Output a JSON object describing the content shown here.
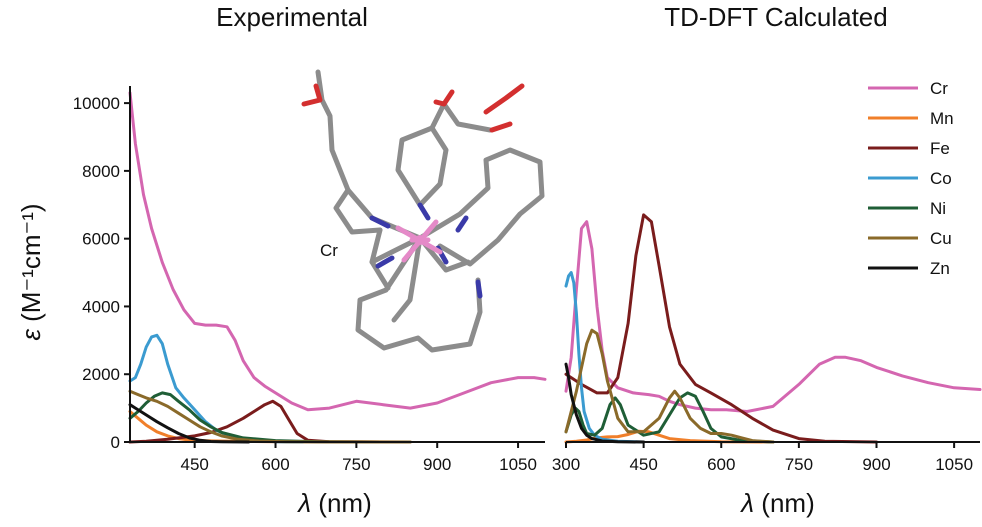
{
  "colors": {
    "Cr": "#d466b0",
    "Mn": "#f07f2a",
    "Fe": "#7a1c1c",
    "Co": "#3b9bd0",
    "Ni": "#1f5e36",
    "Cu": "#8a6a2a",
    "Zn": "#111111"
  },
  "y_axis": {
    "label_symbol": "ε",
    "label_unit": "(M⁻¹cm⁻¹)",
    "ticks": [
      "0",
      "2000",
      "4000",
      "6000",
      "8000",
      "10000"
    ]
  },
  "x_axis_label_symbol": "λ",
  "x_axis_label_unit": "(nm)",
  "legend": [
    "Cr",
    "Mn",
    "Fe",
    "Co",
    "Ni",
    "Cu",
    "Zn"
  ],
  "inset_label": "Cr",
  "chart_data": [
    {
      "type": "line",
      "title": "Experimental",
      "xlabel": "λ (nm)",
      "ylabel": "ε (M⁻¹cm⁻¹)",
      "xlim": [
        330,
        1100
      ],
      "ylim": [
        0,
        10800
      ],
      "xticks": [
        450,
        600,
        750,
        900,
        1050
      ],
      "yticks": [
        0,
        2000,
        4000,
        6000,
        8000,
        10000
      ],
      "series": [
        {
          "name": "Cr",
          "x": [
            330,
            340,
            355,
            370,
            390,
            410,
            430,
            450,
            470,
            490,
            510,
            525,
            540,
            560,
            580,
            600,
            630,
            660,
            700,
            750,
            800,
            850,
            900,
            950,
            1000,
            1050,
            1080,
            1100
          ],
          "y": [
            10300,
            8800,
            7300,
            6300,
            5300,
            4500,
            3900,
            3500,
            3450,
            3450,
            3400,
            3000,
            2400,
            1900,
            1650,
            1450,
            1150,
            950,
            1000,
            1200,
            1100,
            1000,
            1150,
            1450,
            1750,
            1900,
            1900,
            1850
          ]
        },
        {
          "name": "Mn",
          "x": [
            330,
            345,
            360,
            380,
            400,
            420,
            440,
            460,
            490,
            530,
            600,
            700,
            850
          ],
          "y": [
            900,
            700,
            500,
            300,
            180,
            100,
            60,
            40,
            30,
            20,
            10,
            5,
            0
          ]
        },
        {
          "name": "Fe",
          "x": [
            330,
            360,
            400,
            450,
            480,
            510,
            540,
            560,
            580,
            595,
            610,
            625,
            640,
            660,
            700,
            800
          ],
          "y": [
            0,
            20,
            80,
            180,
            280,
            450,
            700,
            900,
            1100,
            1200,
            1050,
            650,
            250,
            50,
            10,
            0
          ]
        },
        {
          "name": "Co",
          "x": [
            330,
            340,
            350,
            360,
            370,
            380,
            390,
            400,
            415,
            430,
            450,
            470,
            490,
            520,
            560,
            600,
            650
          ],
          "y": [
            1800,
            1900,
            2300,
            2800,
            3100,
            3150,
            2900,
            2300,
            1600,
            1300,
            950,
            600,
            350,
            150,
            50,
            10,
            0
          ]
        },
        {
          "name": "Ni",
          "x": [
            330,
            345,
            360,
            375,
            390,
            405,
            420,
            440,
            460,
            480,
            500,
            540,
            600,
            680,
            800
          ],
          "y": [
            700,
            900,
            1150,
            1350,
            1450,
            1400,
            1200,
            950,
            650,
            450,
            280,
            120,
            40,
            10,
            0
          ]
        },
        {
          "name": "Cu",
          "x": [
            330,
            345,
            360,
            380,
            400,
            420,
            440,
            460,
            480,
            500,
            530,
            570,
            620,
            700,
            850
          ],
          "y": [
            1500,
            1400,
            1300,
            1200,
            1050,
            850,
            650,
            450,
            300,
            180,
            80,
            30,
            10,
            0,
            0
          ]
        },
        {
          "name": "Zn",
          "x": [
            330,
            340,
            350,
            365,
            380,
            400,
            420,
            440,
            460,
            480,
            500,
            550
          ],
          "y": [
            1100,
            1000,
            900,
            750,
            600,
            420,
            250,
            120,
            50,
            15,
            5,
            0
          ]
        }
      ]
    },
    {
      "type": "line",
      "title": "TD-DFT Calculated",
      "xlabel": "λ (nm)",
      "ylabel": "",
      "xlim": [
        300,
        1100
      ],
      "ylim": [
        0,
        10800
      ],
      "xticks": [
        300,
        450,
        600,
        750,
        900,
        1050
      ],
      "yticks": [],
      "series": [
        {
          "name": "Cr",
          "x": [
            300,
            310,
            320,
            330,
            340,
            350,
            360,
            370,
            380,
            400,
            430,
            460,
            480,
            500,
            520,
            550,
            580,
            610,
            650,
            700,
            750,
            790,
            820,
            840,
            870,
            900,
            950,
            1000,
            1050,
            1100
          ],
          "y": [
            1500,
            2500,
            4500,
            6300,
            6500,
            5700,
            4000,
            2700,
            1900,
            1600,
            1450,
            1400,
            1350,
            1200,
            1100,
            1000,
            950,
            950,
            900,
            1050,
            1700,
            2300,
            2500,
            2500,
            2400,
            2200,
            1950,
            1750,
            1600,
            1550
          ]
        },
        {
          "name": "Mn",
          "x": [
            300,
            320,
            340,
            360,
            380,
            400,
            420,
            440,
            460,
            480,
            500,
            540,
            600,
            700
          ],
          "y": [
            0,
            20,
            60,
            120,
            150,
            160,
            220,
            320,
            300,
            200,
            100,
            40,
            10,
            0
          ]
        },
        {
          "name": "Fe",
          "x": [
            300,
            330,
            360,
            380,
            400,
            420,
            435,
            450,
            465,
            480,
            500,
            520,
            550,
            580,
            620,
            660,
            700,
            750,
            800,
            900
          ],
          "y": [
            2000,
            1700,
            1450,
            1450,
            1900,
            3500,
            5500,
            6700,
            6500,
            5200,
            3400,
            2300,
            1700,
            1450,
            1100,
            700,
            350,
            100,
            20,
            0
          ]
        },
        {
          "name": "Co",
          "x": [
            300,
            305,
            310,
            315,
            320,
            325,
            330,
            335,
            345,
            355,
            370,
            400,
            450
          ],
          "y": [
            4600,
            4900,
            5000,
            4700,
            3800,
            2600,
            1600,
            900,
            400,
            200,
            80,
            20,
            0
          ]
        },
        {
          "name": "Ni",
          "x": [
            300,
            310,
            318,
            325,
            333,
            340,
            355,
            370,
            385,
            395,
            405,
            420,
            450,
            480,
            500,
            520,
            535,
            550,
            565,
            580,
            600,
            640,
            700
          ],
          "y": [
            300,
            800,
            1000,
            900,
            500,
            250,
            200,
            400,
            1100,
            1300,
            1100,
            500,
            200,
            300,
            800,
            1300,
            1450,
            1350,
            900,
            400,
            150,
            40,
            0
          ]
        },
        {
          "name": "Cu",
          "x": [
            300,
            320,
            340,
            350,
            360,
            370,
            380,
            400,
            420,
            450,
            480,
            500,
            510,
            520,
            540,
            560,
            580,
            600,
            620,
            640,
            660,
            700
          ],
          "y": [
            300,
            1500,
            2900,
            3300,
            3200,
            2600,
            1800,
            700,
            300,
            300,
            700,
            1300,
            1500,
            1300,
            700,
            400,
            250,
            250,
            200,
            120,
            40,
            0
          ]
        },
        {
          "name": "Zn",
          "x": [
            300,
            305,
            310,
            320,
            330,
            340,
            350,
            370,
            400,
            450
          ],
          "y": [
            2300,
            1900,
            1400,
            800,
            400,
            200,
            100,
            30,
            5,
            0
          ]
        }
      ]
    }
  ]
}
